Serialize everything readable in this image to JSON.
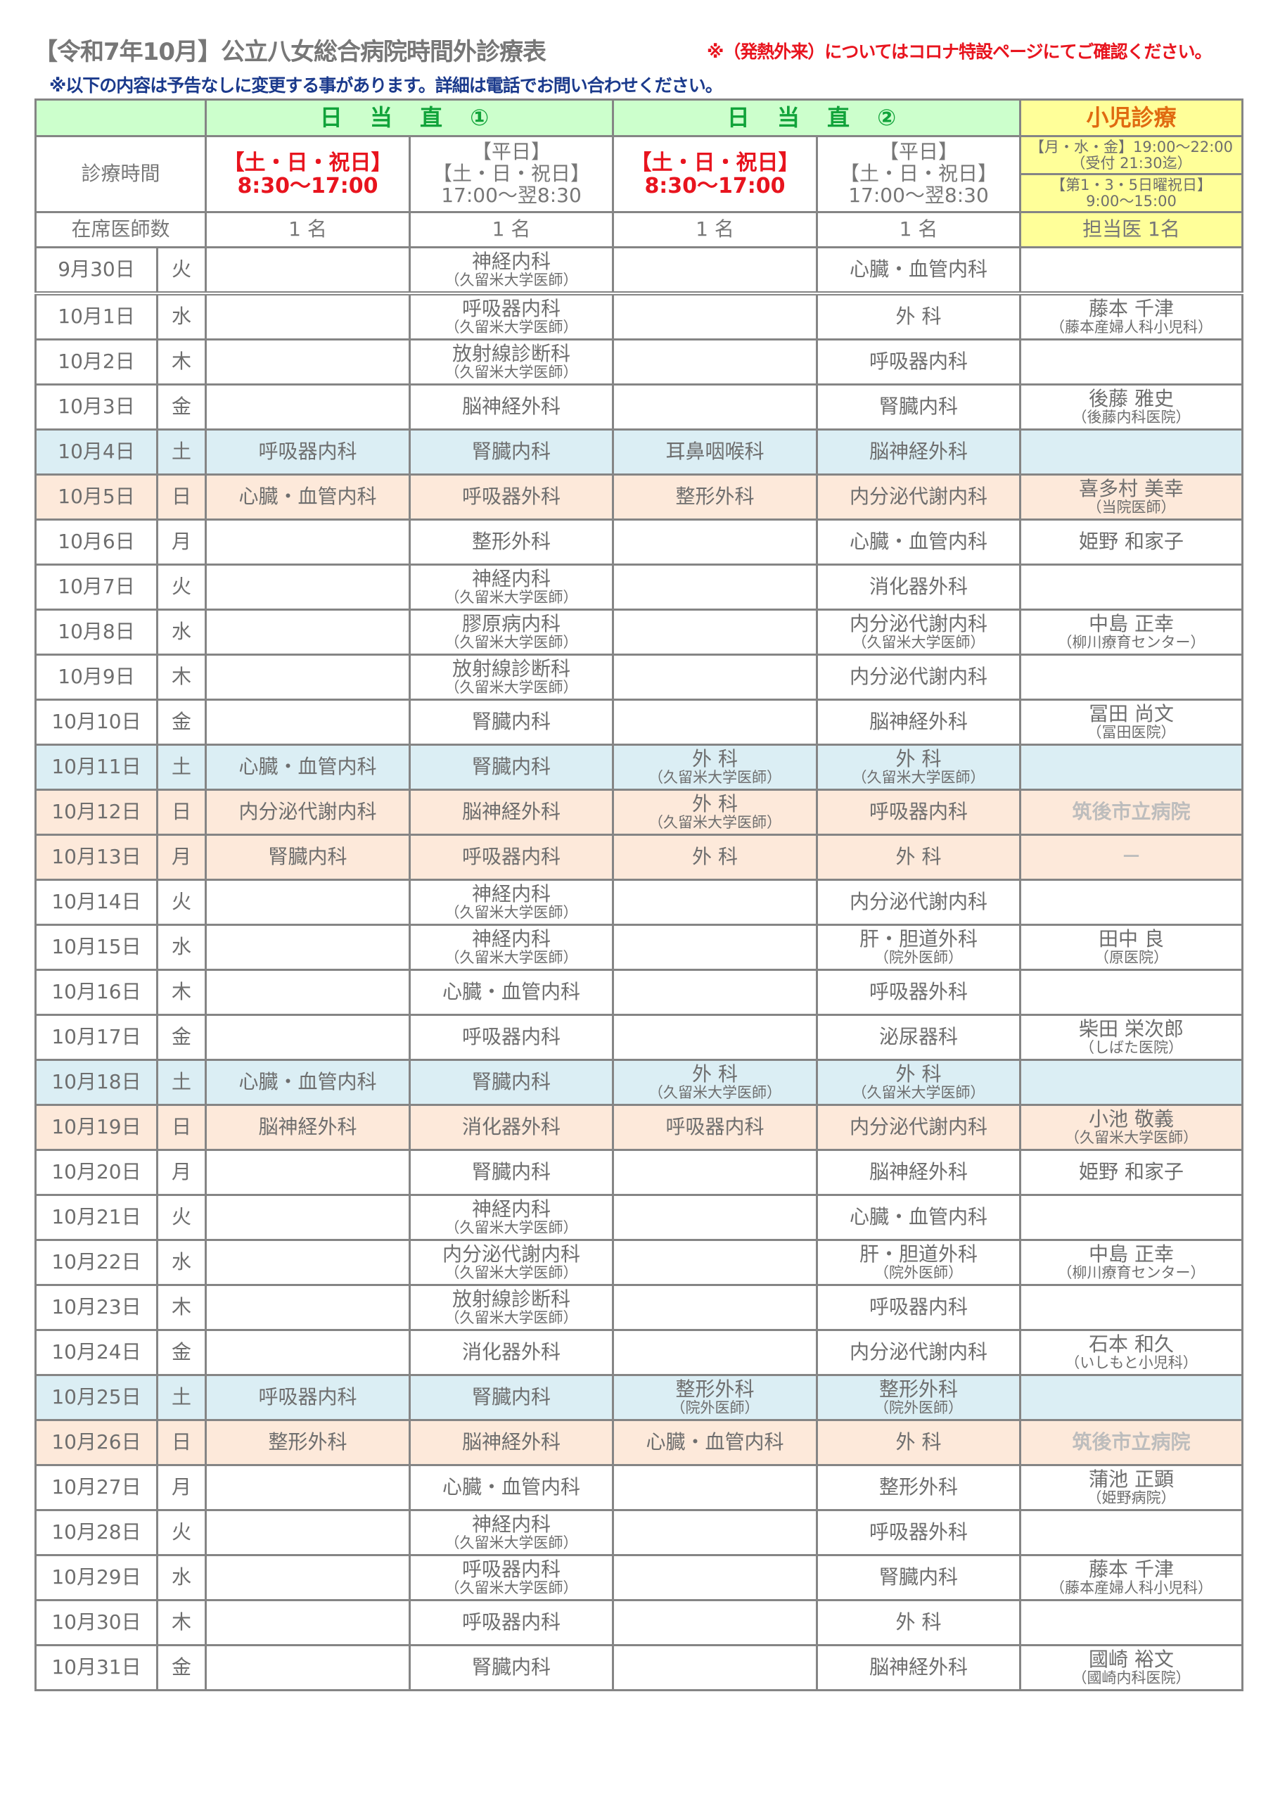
{
  "title": "【令和7年10月】公立八女総合病院時間外診療表",
  "notice": "※（発熱外来）についてはコロナ特設ページにてご確認ください。",
  "note": "※以下の内容は予告なしに変更する事があります。詳細は電話でお問い合わせください。",
  "header": {
    "duty1": "日 当 直 ①",
    "duty2": "日 当 直 ②",
    "pediatric": "小児診療",
    "hours_label": "診療時間",
    "holiday_day": "【土・日・祝日】",
    "holiday_day_time": "8:30〜17:00",
    "weekday": "【平日】",
    "weekday_holiday": "【土・日・祝日】",
    "night_time": "17:00〜翌8:30",
    "ped_hours1": "【月・水・金】19:00〜22:00",
    "ped_hours1b": "（受付 21:30迄）",
    "ped_hours2": "【第1・3・5日曜祝日】",
    "ped_hours2b": "9:00〜15:00",
    "doctors_label": "在席医師数",
    "doctors_count": "1 名",
    "ped_doctors": "担当医 1名"
  },
  "colors": {
    "header_green": "#ccffcc",
    "pediatric_yellow": "#ffff99",
    "saturday_blue": "#dbeef4",
    "sunday_holiday_peach": "#fde9da",
    "red": "#e8141e"
  },
  "rows": [
    {
      "date": "9月30日",
      "dow": "火",
      "type": "weekday",
      "cells": [
        [
          "",
          ""
        ],
        [
          "神経内科",
          "（久留米大学医師）"
        ],
        [
          "",
          ""
        ],
        [
          "心臓・血管内科",
          ""
        ],
        [
          "",
          ""
        ]
      ]
    },
    {
      "date": "10月1日",
      "dow": "水",
      "type": "weekday",
      "cells": [
        [
          "",
          ""
        ],
        [
          "呼吸器内科",
          "（久留米大学医師）"
        ],
        [
          "",
          ""
        ],
        [
          "外 科",
          ""
        ],
        [
          "藤本 千津",
          "（藤本産婦人科小児科）"
        ]
      ]
    },
    {
      "date": "10月2日",
      "dow": "木",
      "type": "weekday",
      "cells": [
        [
          "",
          ""
        ],
        [
          "放射線診断科",
          "（久留米大学医師）"
        ],
        [
          "",
          ""
        ],
        [
          "呼吸器内科",
          ""
        ],
        [
          "",
          ""
        ]
      ]
    },
    {
      "date": "10月3日",
      "dow": "金",
      "type": "weekday",
      "cells": [
        [
          "",
          ""
        ],
        [
          "脳神経外科",
          ""
        ],
        [
          "",
          ""
        ],
        [
          "腎臓内科",
          ""
        ],
        [
          "後藤 雅史",
          "（後藤内科医院）"
        ]
      ]
    },
    {
      "date": "10月4日",
      "dow": "土",
      "type": "sat",
      "cells": [
        [
          "呼吸器内科",
          ""
        ],
        [
          "腎臓内科",
          ""
        ],
        [
          "耳鼻咽喉科",
          ""
        ],
        [
          "脳神経外科",
          ""
        ],
        [
          "",
          ""
        ]
      ]
    },
    {
      "date": "10月5日",
      "dow": "日",
      "type": "sun",
      "cells": [
        [
          "心臓・血管内科",
          ""
        ],
        [
          "呼吸器外科",
          ""
        ],
        [
          "整形外科",
          ""
        ],
        [
          "内分泌代謝内科",
          ""
        ],
        [
          "喜多村 美幸",
          "（当院医師）"
        ]
      ]
    },
    {
      "date": "10月6日",
      "dow": "月",
      "type": "weekday",
      "cells": [
        [
          "",
          ""
        ],
        [
          "整形外科",
          ""
        ],
        [
          "",
          ""
        ],
        [
          "心臓・血管内科",
          ""
        ],
        [
          "姫野 和家子",
          ""
        ]
      ]
    },
    {
      "date": "10月7日",
      "dow": "火",
      "type": "weekday",
      "cells": [
        [
          "",
          ""
        ],
        [
          "神経内科",
          "（久留米大学医師）"
        ],
        [
          "",
          ""
        ],
        [
          "消化器外科",
          ""
        ],
        [
          "",
          ""
        ]
      ]
    },
    {
      "date": "10月8日",
      "dow": "水",
      "type": "weekday",
      "cells": [
        [
          "",
          ""
        ],
        [
          "膠原病内科",
          "（久留米大学医師）"
        ],
        [
          "",
          ""
        ],
        [
          "内分泌代謝内科",
          "（久留米大学医師）"
        ],
        [
          "中島 正幸",
          "（柳川療育センター）"
        ]
      ]
    },
    {
      "date": "10月9日",
      "dow": "木",
      "type": "weekday",
      "cells": [
        [
          "",
          ""
        ],
        [
          "放射線診断科",
          "（久留米大学医師）"
        ],
        [
          "",
          ""
        ],
        [
          "内分泌代謝内科",
          ""
        ],
        [
          "",
          ""
        ]
      ]
    },
    {
      "date": "10月10日",
      "dow": "金",
      "type": "weekday",
      "cells": [
        [
          "",
          ""
        ],
        [
          "腎臓内科",
          ""
        ],
        [
          "",
          ""
        ],
        [
          "脳神経外科",
          ""
        ],
        [
          "冨田 尚文",
          "（冨田医院）"
        ]
      ]
    },
    {
      "date": "10月11日",
      "dow": "土",
      "type": "sat",
      "cells": [
        [
          "心臓・血管内科",
          ""
        ],
        [
          "腎臓内科",
          ""
        ],
        [
          "外 科",
          "（久留米大学医師）"
        ],
        [
          "外 科",
          "（久留米大学医師）"
        ],
        [
          "",
          ""
        ]
      ]
    },
    {
      "date": "10月12日",
      "dow": "日",
      "type": "sun",
      "cells": [
        [
          "内分泌代謝内科",
          ""
        ],
        [
          "脳神経外科",
          ""
        ],
        [
          "外 科",
          "（久留米大学医師）"
        ],
        [
          "呼吸器内科",
          ""
        ],
        [
          "筑後市立病院",
          ""
        ]
      ],
      "ped_light": true
    },
    {
      "date": "10月13日",
      "dow": "月",
      "type": "sun",
      "cells": [
        [
          "腎臓内科",
          ""
        ],
        [
          "呼吸器内科",
          ""
        ],
        [
          "外 科",
          ""
        ],
        [
          "外 科",
          ""
        ],
        [
          "－",
          ""
        ]
      ],
      "ped_light": true
    },
    {
      "date": "10月14日",
      "dow": "火",
      "type": "weekday",
      "cells": [
        [
          "",
          ""
        ],
        [
          "神経内科",
          "（久留米大学医師）"
        ],
        [
          "",
          ""
        ],
        [
          "内分泌代謝内科",
          ""
        ],
        [
          "",
          ""
        ]
      ]
    },
    {
      "date": "10月15日",
      "dow": "水",
      "type": "weekday",
      "cells": [
        [
          "",
          ""
        ],
        [
          "神経内科",
          "（久留米大学医師）"
        ],
        [
          "",
          ""
        ],
        [
          "肝・胆道外科",
          "（院外医師）"
        ],
        [
          "田中 良",
          "（原医院）"
        ]
      ]
    },
    {
      "date": "10月16日",
      "dow": "木",
      "type": "weekday",
      "cells": [
        [
          "",
          ""
        ],
        [
          "心臓・血管内科",
          ""
        ],
        [
          "",
          ""
        ],
        [
          "呼吸器外科",
          ""
        ],
        [
          "",
          ""
        ]
      ]
    },
    {
      "date": "10月17日",
      "dow": "金",
      "type": "weekday",
      "cells": [
        [
          "",
          ""
        ],
        [
          "呼吸器内科",
          ""
        ],
        [
          "",
          ""
        ],
        [
          "泌尿器科",
          ""
        ],
        [
          "柴田 栄次郎",
          "（しばた医院）"
        ]
      ]
    },
    {
      "date": "10月18日",
      "dow": "土",
      "type": "sat",
      "cells": [
        [
          "心臓・血管内科",
          ""
        ],
        [
          "腎臓内科",
          ""
        ],
        [
          "外 科",
          "（久留米大学医師）"
        ],
        [
          "外 科",
          "（久留米大学医師）"
        ],
        [
          "",
          ""
        ]
      ]
    },
    {
      "date": "10月19日",
      "dow": "日",
      "type": "sun",
      "cells": [
        [
          "脳神経外科",
          ""
        ],
        [
          "消化器外科",
          ""
        ],
        [
          "呼吸器内科",
          ""
        ],
        [
          "内分泌代謝内科",
          ""
        ],
        [
          "小池 敬義",
          "（久留米大学医師）"
        ]
      ]
    },
    {
      "date": "10月20日",
      "dow": "月",
      "type": "weekday",
      "cells": [
        [
          "",
          ""
        ],
        [
          "腎臓内科",
          ""
        ],
        [
          "",
          ""
        ],
        [
          "脳神経外科",
          ""
        ],
        [
          "姫野 和家子",
          ""
        ]
      ]
    },
    {
      "date": "10月21日",
      "dow": "火",
      "type": "weekday",
      "cells": [
        [
          "",
          ""
        ],
        [
          "神経内科",
          "（久留米大学医師）"
        ],
        [
          "",
          ""
        ],
        [
          "心臓・血管内科",
          ""
        ],
        [
          "",
          ""
        ]
      ]
    },
    {
      "date": "10月22日",
      "dow": "水",
      "type": "weekday",
      "cells": [
        [
          "",
          ""
        ],
        [
          "内分泌代謝内科",
          "（久留米大学医師）"
        ],
        [
          "",
          ""
        ],
        [
          "肝・胆道外科",
          "（院外医師）"
        ],
        [
          "中島 正幸",
          "（柳川療育センター）"
        ]
      ]
    },
    {
      "date": "10月23日",
      "dow": "木",
      "type": "weekday",
      "cells": [
        [
          "",
          ""
        ],
        [
          "放射線診断科",
          "（久留米大学医師）"
        ],
        [
          "",
          ""
        ],
        [
          "呼吸器内科",
          ""
        ],
        [
          "",
          ""
        ]
      ]
    },
    {
      "date": "10月24日",
      "dow": "金",
      "type": "weekday",
      "cells": [
        [
          "",
          ""
        ],
        [
          "消化器外科",
          ""
        ],
        [
          "",
          ""
        ],
        [
          "内分泌代謝内科",
          ""
        ],
        [
          "石本 和久",
          "（いしもと小児科）"
        ]
      ]
    },
    {
      "date": "10月25日",
      "dow": "土",
      "type": "sat",
      "cells": [
        [
          "呼吸器内科",
          ""
        ],
        [
          "腎臓内科",
          ""
        ],
        [
          "整形外科",
          "（院外医師）"
        ],
        [
          "整形外科",
          "（院外医師）"
        ],
        [
          "",
          ""
        ]
      ]
    },
    {
      "date": "10月26日",
      "dow": "日",
      "type": "sun",
      "cells": [
        [
          "整形外科",
          ""
        ],
        [
          "脳神経外科",
          ""
        ],
        [
          "心臓・血管内科",
          ""
        ],
        [
          "外 科",
          ""
        ],
        [
          "筑後市立病院",
          ""
        ]
      ],
      "ped_light": true
    },
    {
      "date": "10月27日",
      "dow": "月",
      "type": "weekday",
      "cells": [
        [
          "",
          ""
        ],
        [
          "心臓・血管内科",
          ""
        ],
        [
          "",
          ""
        ],
        [
          "整形外科",
          ""
        ],
        [
          "蒲池 正顕",
          "（姫野病院）"
        ]
      ]
    },
    {
      "date": "10月28日",
      "dow": "火",
      "type": "weekday",
      "cells": [
        [
          "",
          ""
        ],
        [
          "神経内科",
          "（久留米大学医師）"
        ],
        [
          "",
          ""
        ],
        [
          "呼吸器外科",
          ""
        ],
        [
          "",
          ""
        ]
      ]
    },
    {
      "date": "10月29日",
      "dow": "水",
      "type": "weekday",
      "cells": [
        [
          "",
          ""
        ],
        [
          "呼吸器内科",
          "（久留米大学医師）"
        ],
        [
          "",
          ""
        ],
        [
          "腎臓内科",
          ""
        ],
        [
          "藤本 千津",
          "（藤本産婦人科小児科）"
        ]
      ]
    },
    {
      "date": "10月30日",
      "dow": "木",
      "type": "weekday",
      "cells": [
        [
          "",
          ""
        ],
        [
          "呼吸器内科",
          ""
        ],
        [
          "",
          ""
        ],
        [
          "外 科",
          ""
        ],
        [
          "",
          ""
        ]
      ]
    },
    {
      "date": "10月31日",
      "dow": "金",
      "type": "weekday",
      "cells": [
        [
          "",
          ""
        ],
        [
          "腎臓内科",
          ""
        ],
        [
          "",
          ""
        ],
        [
          "脳神経外科",
          ""
        ],
        [
          "國崎 裕文",
          "（國崎内科医院）"
        ]
      ]
    }
  ]
}
